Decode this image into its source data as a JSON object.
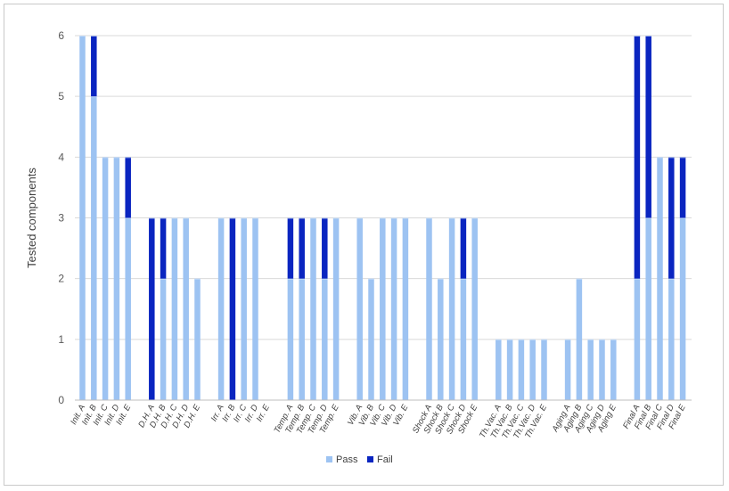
{
  "chart_data": {
    "type": "bar",
    "stacked": true,
    "ylabel": "Tested components",
    "xlabel": "",
    "ylim": [
      0,
      6
    ],
    "yticks": [
      0,
      1,
      2,
      3,
      4,
      5,
      6
    ],
    "grid": true,
    "legend_position": "bottom",
    "categories": [
      "Init. A",
      "Init. B",
      "Init. C",
      "Init. D",
      "Init. E",
      "D.H. A",
      "D.H. B",
      "D.H. C",
      "D.H. D",
      "D.H. E",
      "Irr. A",
      "Irr. B",
      "Irr. C",
      "Irr. D",
      "Irr. E",
      "Temp. A",
      "Temp. B",
      "Temp. C",
      "Temp. D",
      "Temp. E",
      "Vib. A",
      "Vib. B",
      "Vib. C",
      "Vib. D",
      "Vib. E",
      "Shock A",
      "Shock B",
      "Shock C",
      "Shock D",
      "Shock E",
      "Th.Vac. A",
      "Th.Vac. B",
      "Th.Vac. C",
      "Th.Vac. D",
      "Th.Vac. E",
      "Aging A",
      "Aging B",
      "Aging C",
      "Aging D",
      "Aging E",
      "Final A",
      "Final B",
      "Final C",
      "Final D",
      "Final E"
    ],
    "groups": 9,
    "per_group": 5,
    "series": [
      {
        "name": "Pass",
        "color": "#9dc3f2",
        "values": [
          6,
          5,
          4,
          4,
          3,
          0,
          2,
          3,
          3,
          2,
          3,
          0,
          3,
          3,
          0,
          2,
          2,
          3,
          2,
          3,
          3,
          2,
          3,
          3,
          3,
          3,
          2,
          3,
          2,
          3,
          1,
          1,
          1,
          1,
          1,
          1,
          2,
          1,
          1,
          1,
          2,
          3,
          4,
          2,
          3
        ]
      },
      {
        "name": "Fail",
        "color": "#0a25c0",
        "values": [
          0,
          1,
          0,
          0,
          1,
          3,
          1,
          0,
          0,
          0,
          0,
          3,
          0,
          0,
          0,
          1,
          1,
          0,
          1,
          0,
          0,
          0,
          0,
          0,
          0,
          0,
          0,
          0,
          1,
          0,
          0,
          0,
          0,
          0,
          0,
          0,
          0,
          0,
          0,
          0,
          4,
          3,
          0,
          2,
          1
        ]
      }
    ]
  }
}
